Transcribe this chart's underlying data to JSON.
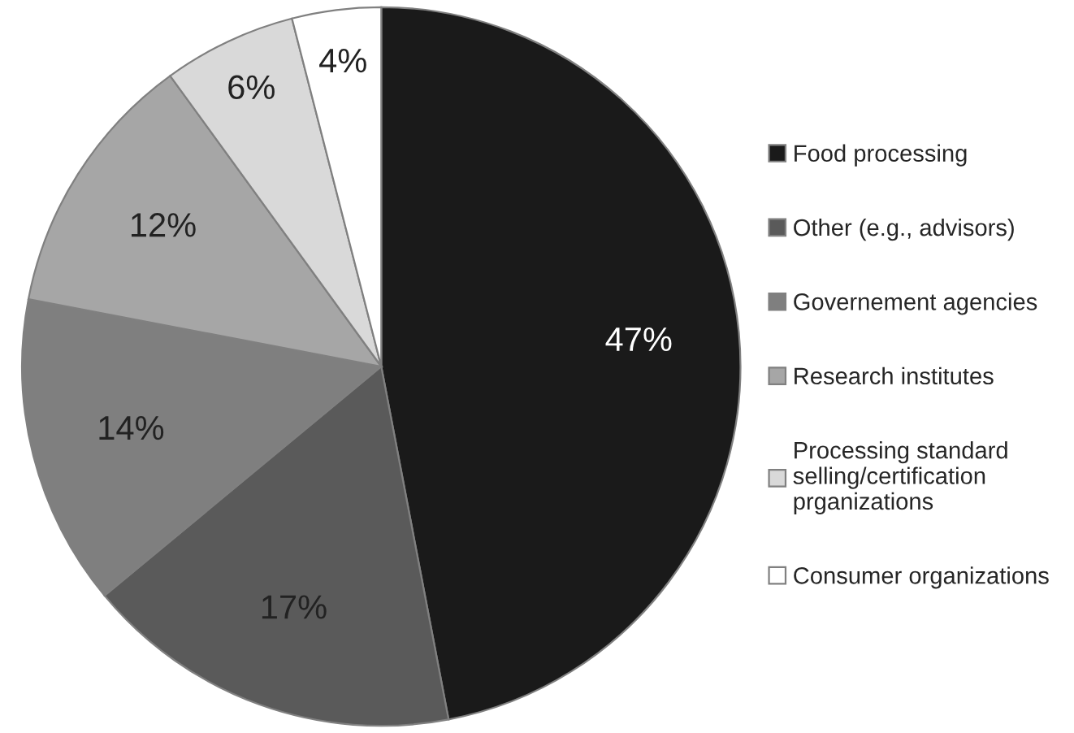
{
  "chart_data": {
    "type": "pie",
    "categories": [
      "Food processing",
      "Other (e.g., advisors)",
      "Governement agencies",
      "Research institutes",
      "Processing standard\nselling/certification\nprganizations",
      "Consumer organizations"
    ],
    "values": [
      47,
      17,
      14,
      12,
      6,
      4
    ],
    "colors": [
      "#1a1a1a",
      "#5a5a5a",
      "#7f7f7f",
      "#a6a6a6",
      "#d9d9d9",
      "#ffffff"
    ],
    "value_labels": [
      "47%",
      "17%",
      "14%",
      "12%",
      "6%",
      "4%"
    ],
    "legend": "right"
  }
}
